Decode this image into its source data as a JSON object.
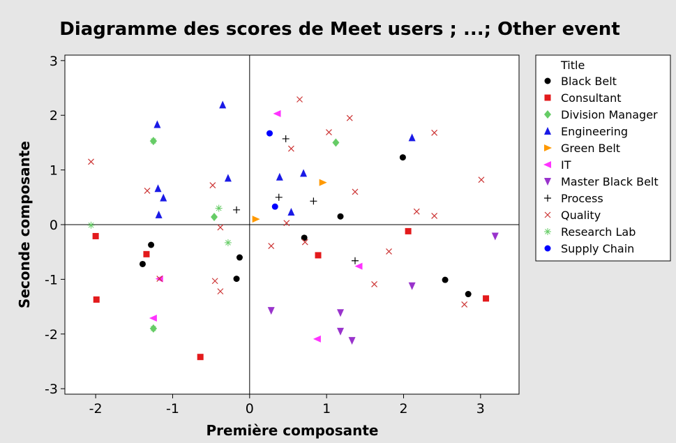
{
  "chart_data": {
    "type": "scatter",
    "title": "Diagramme des scores de Meet users ; ...; Other event",
    "xlabel": "Première composante",
    "ylabel": "Seconde composante",
    "xlim": [
      -2.4,
      3.5
    ],
    "ylim": [
      -3.1,
      3.1
    ],
    "xticks": [
      -2,
      -1,
      0,
      1,
      2,
      3
    ],
    "yticks": [
      -3,
      -2,
      -1,
      0,
      1,
      2,
      3
    ],
    "reference_lines": {
      "x": 0,
      "y": 0
    },
    "grid": false,
    "legend": {
      "title": "Title",
      "position": "right"
    },
    "series": [
      {
        "name": "Black Belt",
        "marker": "circle",
        "color": "#000000",
        "points": [
          [
            -1.28,
            -0.37
          ],
          [
            -1.39,
            -0.72
          ],
          [
            -0.13,
            -0.6
          ],
          [
            -0.17,
            -0.99
          ],
          [
            0.71,
            -0.24
          ],
          [
            1.18,
            0.15
          ],
          [
            1.99,
            1.23
          ],
          [
            2.54,
            -1.01
          ],
          [
            2.84,
            -1.27
          ]
        ]
      },
      {
        "name": "Consultant",
        "marker": "square",
        "color": "#e31a1c",
        "points": [
          [
            -2.0,
            -0.21
          ],
          [
            -1.99,
            -1.37
          ],
          [
            -1.34,
            -0.54
          ],
          [
            -0.64,
            -2.42
          ],
          [
            0.89,
            -0.56
          ],
          [
            2.06,
            -0.12
          ],
          [
            3.07,
            -1.35
          ]
        ]
      },
      {
        "name": "Division Manager",
        "marker": "diamond",
        "color": "#66cc66",
        "points": [
          [
            -1.25,
            1.53
          ],
          [
            -0.46,
            0.14
          ],
          [
            1.12,
            1.5
          ],
          [
            -1.25,
            -1.9
          ]
        ]
      },
      {
        "name": "Engineering",
        "marker": "triangle-up",
        "color": "#1a1ae6",
        "points": [
          [
            -1.2,
            1.83
          ],
          [
            -0.35,
            2.19
          ],
          [
            -1.19,
            0.66
          ],
          [
            -1.12,
            0.49
          ],
          [
            -0.28,
            0.85
          ],
          [
            -1.18,
            0.18
          ],
          [
            0.39,
            0.87
          ],
          [
            0.7,
            0.94
          ],
          [
            0.54,
            0.23
          ],
          [
            2.11,
            1.59
          ]
        ]
      },
      {
        "name": "Green Belt",
        "marker": "triangle-right",
        "color": "#ff9900",
        "points": [
          [
            0.08,
            0.1
          ],
          [
            0.95,
            0.77
          ]
        ]
      },
      {
        "name": "IT",
        "marker": "triangle-left",
        "color": "#ff33ff",
        "points": [
          [
            0.36,
            2.03
          ],
          [
            -1.17,
            -0.99
          ],
          [
            -1.25,
            -1.71
          ],
          [
            0.88,
            -2.09
          ],
          [
            1.42,
            -0.76
          ]
        ]
      },
      {
        "name": "Master Black Belt",
        "marker": "triangle-down",
        "color": "#9933cc",
        "points": [
          [
            0.28,
            -1.57
          ],
          [
            1.18,
            -1.61
          ],
          [
            1.18,
            -1.95
          ],
          [
            1.33,
            -2.12
          ],
          [
            2.11,
            -1.12
          ],
          [
            3.19,
            -0.21
          ]
        ]
      },
      {
        "name": "Process",
        "marker": "plus",
        "color": "#000000",
        "points": [
          [
            0.47,
            1.57
          ],
          [
            0.38,
            0.5
          ],
          [
            -0.17,
            0.27
          ],
          [
            0.83,
            0.43
          ],
          [
            1.37,
            -0.66
          ]
        ]
      },
      {
        "name": "Quality",
        "marker": "x",
        "color": "#cc3333",
        "points": [
          [
            -2.06,
            1.15
          ],
          [
            -1.33,
            0.62
          ],
          [
            -0.48,
            0.72
          ],
          [
            -0.38,
            -0.05
          ],
          [
            -0.45,
            -1.03
          ],
          [
            -0.38,
            -1.22
          ],
          [
            0.28,
            -0.39
          ],
          [
            0.48,
            0.03
          ],
          [
            0.72,
            -0.32
          ],
          [
            0.54,
            1.39
          ],
          [
            0.65,
            2.29
          ],
          [
            1.03,
            1.69
          ],
          [
            1.3,
            1.95
          ],
          [
            1.37,
            0.6
          ],
          [
            1.62,
            -1.09
          ],
          [
            1.81,
            -0.49
          ],
          [
            2.17,
            0.24
          ],
          [
            2.4,
            1.68
          ],
          [
            2.4,
            0.16
          ],
          [
            2.79,
            -1.46
          ],
          [
            3.01,
            0.82
          ],
          [
            -1.17,
            -0.99
          ]
        ]
      },
      {
        "name": "Research Lab",
        "marker": "asterisk",
        "color": "#66cc66",
        "points": [
          [
            -2.06,
            -0.01
          ],
          [
            -1.25,
            1.53
          ],
          [
            -0.4,
            0.3
          ],
          [
            -0.28,
            -0.33
          ],
          [
            -1.25,
            -1.9
          ]
        ]
      },
      {
        "name": "Supply Chain",
        "marker": "circle",
        "color": "#0000ff",
        "points": [
          [
            0.26,
            1.67
          ],
          [
            0.33,
            0.33
          ]
        ]
      }
    ]
  }
}
